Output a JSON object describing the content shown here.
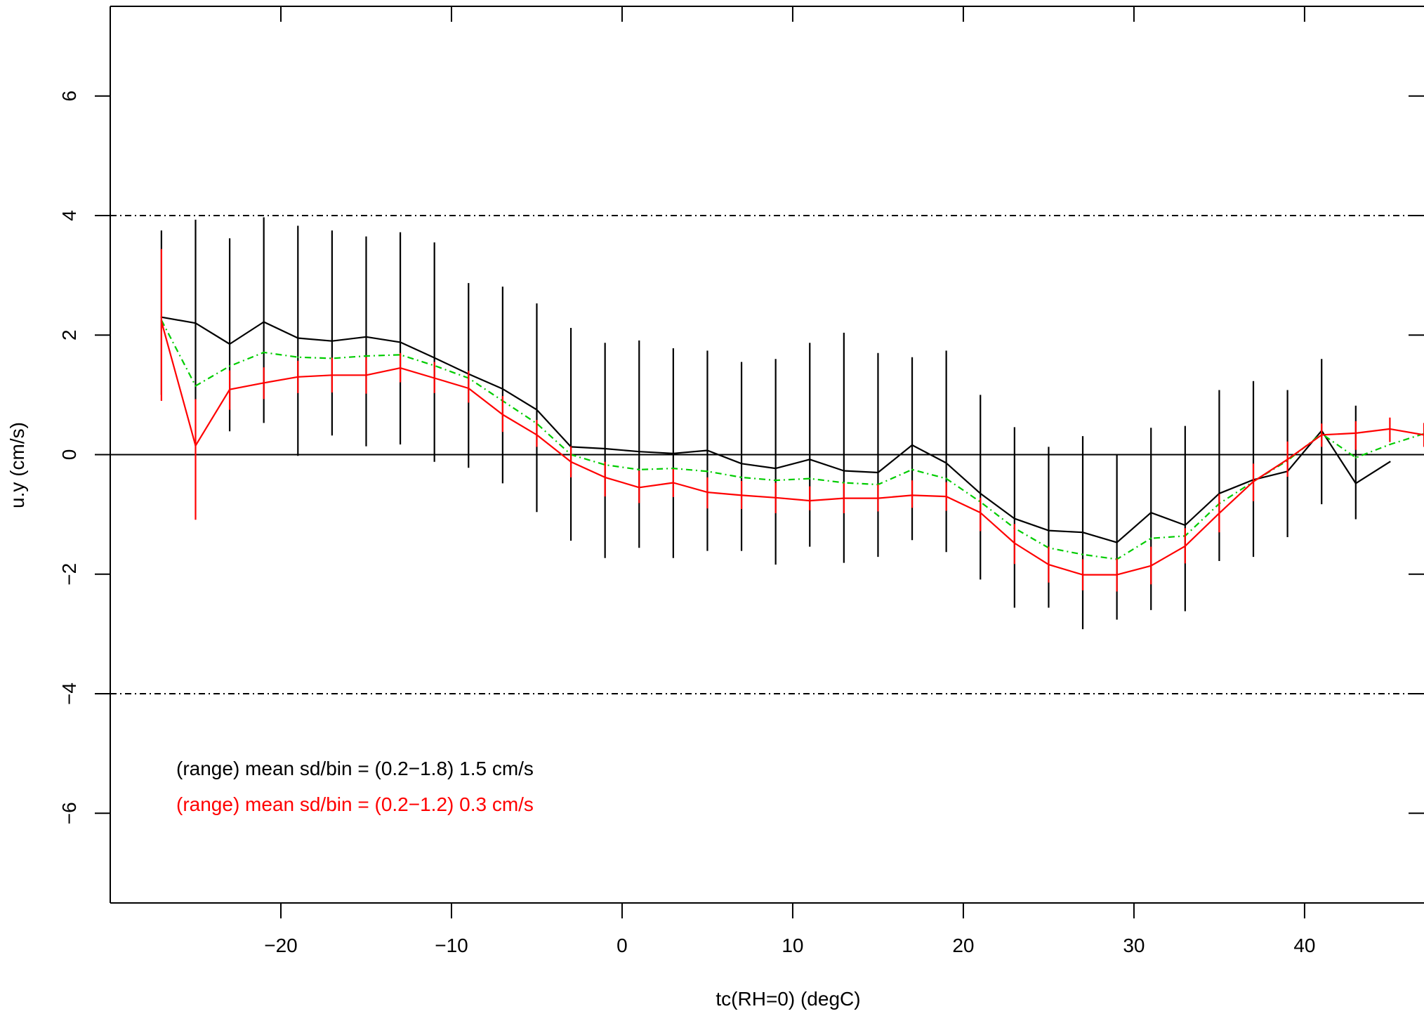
{
  "chart_data": {
    "type": "line",
    "title": "",
    "xlabel": "tc(RH=0) (degC)",
    "ylabel": "u.y (cm/s)",
    "xlim": [
      -30,
      47
    ],
    "ylim": [
      -7.5,
      7.5
    ],
    "x_ticks": [
      -20,
      -10,
      0,
      10,
      20,
      30,
      40
    ],
    "x_tick_labels": [
      "−20",
      "−10",
      "0",
      "10",
      "20",
      "30",
      "40"
    ],
    "y_ticks": [
      -6,
      -4,
      -2,
      0,
      2,
      4,
      6
    ],
    "y_tick_labels": [
      "−6",
      "−4",
      "−2",
      "0",
      "2",
      "4",
      "6"
    ],
    "reference_lines": [
      {
        "y": 4,
        "style": "dot-dash",
        "color": "#000000"
      },
      {
        "y": 0,
        "style": "solid",
        "color": "#000000"
      },
      {
        "y": -4,
        "style": "dot-dash",
        "color": "#000000"
      }
    ],
    "series": [
      {
        "color": "#000000",
        "style": "solid",
        "error_bars": true,
        "x": [
          -27,
          -25,
          -23,
          -21,
          -19,
          -17,
          -15,
          -13,
          -11,
          -9,
          -7,
          -5,
          -3,
          -1,
          1,
          3,
          5,
          7,
          9,
          11,
          13,
          15,
          17,
          19,
          21,
          23,
          25,
          27,
          29,
          31,
          33,
          35,
          37,
          39,
          41,
          43,
          45
        ],
        "y": [
          2.3,
          2.2,
          1.85,
          2.22,
          1.95,
          1.9,
          1.97,
          1.88,
          1.62,
          1.35,
          1.1,
          0.75,
          0.13,
          0.1,
          0.05,
          0.02,
          0.07,
          -0.15,
          -0.23,
          -0.08,
          -0.27,
          -0.3,
          0.16,
          -0.14,
          -0.65,
          -1.07,
          -1.27,
          -1.3,
          -1.47,
          -0.97,
          -1.18,
          -0.65,
          -0.42,
          -0.28,
          0.4,
          -0.48,
          -0.12
        ],
        "err_low": [
          1.0,
          0.92,
          0.39,
          0.53,
          -0.02,
          0.32,
          0.14,
          0.17,
          -0.12,
          -0.22,
          -0.48,
          -0.96,
          -1.44,
          -1.73,
          -1.56,
          -1.73,
          -1.61,
          -1.61,
          -1.84,
          -1.54,
          -1.81,
          -1.71,
          -1.43,
          -1.63,
          -2.09,
          -2.56,
          -2.56,
          -2.92,
          -2.76,
          -2.6,
          -2.62,
          -1.78,
          -1.71,
          -1.38,
          -0.83,
          -1.08,
          null
        ],
        "err_high": [
          3.75,
          3.93,
          3.62,
          3.97,
          3.83,
          3.75,
          3.65,
          3.72,
          3.55,
          2.87,
          2.81,
          2.53,
          2.12,
          1.87,
          1.91,
          1.78,
          1.74,
          1.55,
          1.6,
          1.87,
          2.04,
          1.7,
          1.63,
          1.74,
          1.0,
          0.46,
          0.13,
          0.31,
          0.0,
          0.45,
          0.48,
          1.08,
          1.23,
          1.08,
          1.6,
          0.82,
          null
        ]
      },
      {
        "color": "#00cc00",
        "style": "dot-dash",
        "error_bars": false,
        "x": [
          -27,
          -25,
          -23,
          -21,
          -19,
          -17,
          -15,
          -13,
          -11,
          -9,
          -7,
          -5,
          -3,
          -1,
          1,
          3,
          5,
          7,
          9,
          11,
          13,
          15,
          17,
          19,
          21,
          23,
          25,
          27,
          29,
          31,
          33,
          35,
          37,
          39,
          41,
          43,
          45,
          47
        ],
        "y": [
          2.25,
          1.15,
          1.48,
          1.71,
          1.63,
          1.61,
          1.65,
          1.67,
          1.49,
          1.28,
          0.9,
          0.52,
          0.0,
          -0.17,
          -0.25,
          -0.23,
          -0.28,
          -0.38,
          -0.43,
          -0.4,
          -0.47,
          -0.5,
          -0.25,
          -0.4,
          -0.79,
          -1.23,
          -1.56,
          -1.67,
          -1.75,
          -1.4,
          -1.36,
          -0.82,
          -0.45,
          -0.1,
          0.35,
          -0.05,
          0.17,
          0.35
        ]
      },
      {
        "color": "#ff0000",
        "style": "solid",
        "error_bars": true,
        "x": [
          -27,
          -25,
          -23,
          -21,
          -19,
          -17,
          -15,
          -13,
          -11,
          -9,
          -7,
          -5,
          -3,
          -1,
          1,
          3,
          5,
          7,
          9,
          11,
          13,
          15,
          17,
          19,
          21,
          23,
          25,
          27,
          29,
          31,
          33,
          35,
          37,
          39,
          41,
          43,
          45,
          47
        ],
        "y": [
          2.23,
          0.15,
          1.09,
          1.2,
          1.3,
          1.33,
          1.33,
          1.45,
          1.28,
          1.11,
          0.67,
          0.33,
          -0.12,
          -0.38,
          -0.55,
          -0.47,
          -0.63,
          -0.68,
          -0.72,
          -0.77,
          -0.73,
          -0.73,
          -0.68,
          -0.7,
          -0.97,
          -1.48,
          -1.84,
          -2.01,
          -2.01,
          -1.86,
          -1.53,
          -0.98,
          -0.45,
          -0.08,
          0.33,
          0.36,
          0.43,
          0.33
        ],
        "err_low": [
          0.9,
          -1.09,
          0.75,
          0.93,
          1.03,
          1.04,
          1.02,
          1.21,
          1.03,
          0.87,
          0.38,
          0.13,
          -0.38,
          -0.7,
          -0.81,
          -0.71,
          -0.9,
          -0.91,
          -0.98,
          -0.93,
          -0.98,
          -0.95,
          -0.89,
          -0.94,
          -1.28,
          -1.83,
          -2.14,
          -2.27,
          -2.29,
          -2.17,
          -1.82,
          -1.3,
          -0.78,
          -0.37,
          0.13,
          0.08,
          0.21,
          0.13
        ],
        "err_high": [
          3.44,
          0.93,
          1.41,
          1.46,
          1.57,
          1.62,
          1.63,
          1.7,
          1.55,
          1.4,
          0.98,
          0.58,
          0.14,
          -0.12,
          -0.27,
          -0.24,
          -0.38,
          -0.44,
          -0.47,
          -0.53,
          -0.48,
          -0.5,
          -0.43,
          -0.46,
          -0.72,
          -1.16,
          -1.54,
          -1.75,
          -1.74,
          -1.54,
          -1.23,
          -0.66,
          -0.15,
          0.22,
          0.52,
          0.56,
          0.62,
          0.53
        ]
      }
    ],
    "annotations": [
      {
        "text": "(range) mean sd/bin = (0.2−1.8) 1.5 cm/s",
        "color": "#000000"
      },
      {
        "text": "(range) mean sd/bin = (0.2−1.2) 0.3 cm/s",
        "color": "#ff0000"
      }
    ]
  }
}
